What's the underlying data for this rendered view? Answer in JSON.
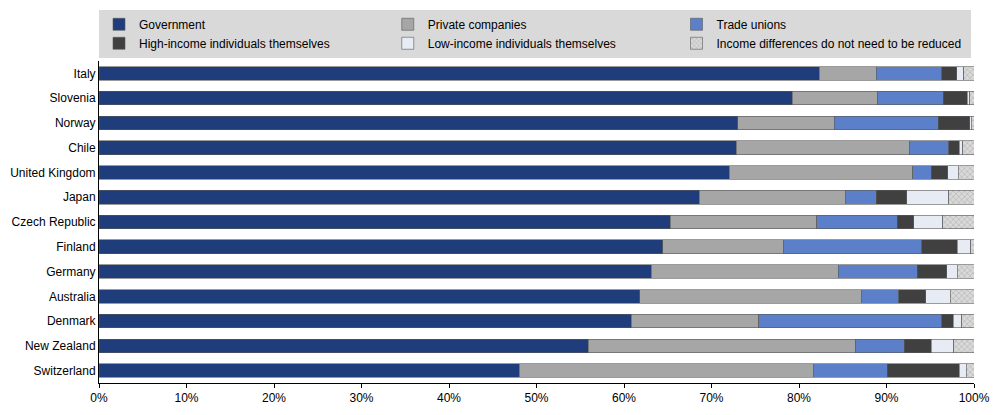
{
  "chart_data": {
    "type": "bar",
    "orientation": "horizontal",
    "stacked": true,
    "grid": false,
    "legend": "top",
    "categories": [
      "Italy",
      "Slovenia",
      "Norway",
      "Chile",
      "United Kingdom",
      "Japan",
      "Czech Republic",
      "Finland",
      "Germany",
      "Australia",
      "Denmark",
      "New Zealand",
      "Switzerland"
    ],
    "xlim": [
      0,
      100
    ],
    "xticks": [
      {
        "value": 0,
        "label": "0%"
      },
      {
        "value": 10,
        "label": "10%"
      },
      {
        "value": 20,
        "label": "20%"
      },
      {
        "value": 30,
        "label": "30%"
      },
      {
        "value": 40,
        "label": "40%"
      },
      {
        "value": 50,
        "label": "50%"
      },
      {
        "value": 60,
        "label": "60%"
      },
      {
        "value": 70,
        "label": "70%"
      },
      {
        "value": 80,
        "label": "80%"
      },
      {
        "value": 90,
        "label": "90%"
      },
      {
        "value": 100,
        "label": "100%"
      }
    ],
    "series": [
      {
        "name": "Government",
        "color": "#1f3d7a",
        "values": [
          82.3,
          79.2,
          73.0,
          72.8,
          72.0,
          68.6,
          65.3,
          64.4,
          63.1,
          61.8,
          60.8,
          55.9,
          48.0
        ]
      },
      {
        "name": "Private companies",
        "color": "#a6a6a6",
        "values": [
          6.5,
          9.8,
          11.0,
          19.8,
          21.0,
          16.7,
          16.7,
          13.8,
          21.4,
          25.3,
          14.6,
          30.6,
          33.6
        ]
      },
      {
        "name": "Trade unions",
        "color": "#5b7fc9",
        "values": [
          7.5,
          7.5,
          11.9,
          4.5,
          2.1,
          3.5,
          9.2,
          15.8,
          9.0,
          4.3,
          20.9,
          5.5,
          8.5
        ]
      },
      {
        "name": "High-income individuals themselves",
        "color": "#404040",
        "values": [
          1.7,
          2.7,
          3.6,
          1.2,
          1.9,
          3.5,
          1.9,
          4.1,
          3.4,
          3.1,
          1.3,
          3.1,
          8.2
        ]
      },
      {
        "name": "Low-income individuals themselves",
        "color": "#e6ebf4",
        "values": [
          0.8,
          0.3,
          0.2,
          0.4,
          1.2,
          4.8,
          3.3,
          1.5,
          1.2,
          2.8,
          1.0,
          2.6,
          0.8
        ]
      },
      {
        "name": "Income differences do not need to be reduced",
        "color": "#d9d9d9",
        "marker": "pattern",
        "values": [
          1.2,
          0.5,
          0.3,
          1.3,
          1.8,
          2.9,
          3.6,
          0.4,
          1.9,
          2.7,
          1.4,
          2.3,
          0.9
        ]
      }
    ]
  }
}
